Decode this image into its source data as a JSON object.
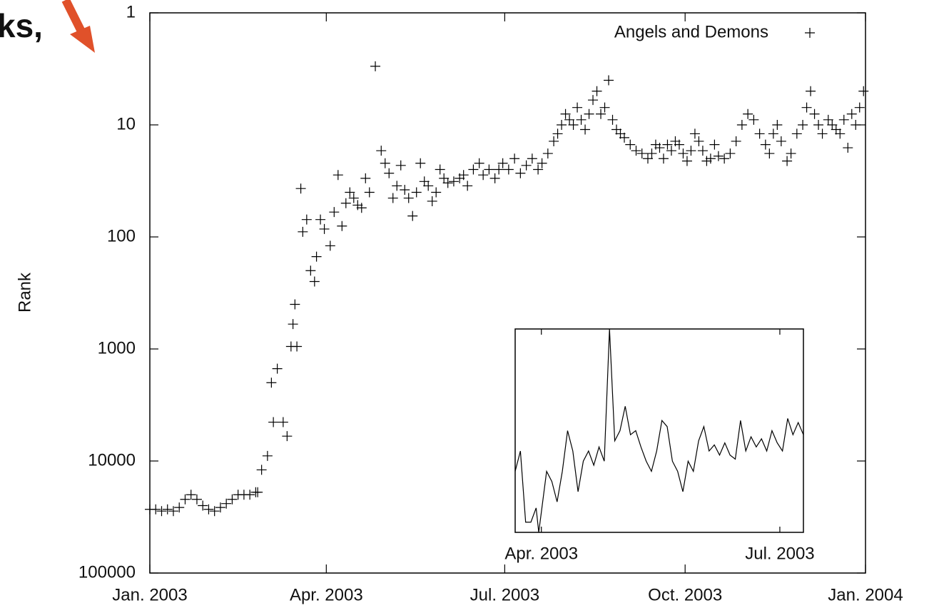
{
  "chart_data": [
    {
      "type": "scatter",
      "annotations": [
        "ks,"
      ],
      "ylabel": "Rank",
      "log_y": true,
      "y_reversed": true,
      "legend": "upper right",
      "xlim": [
        0,
        365
      ],
      "xticks": [
        {
          "value": 0,
          "label": "Jan. 2003"
        },
        {
          "value": 90,
          "label": "Apr. 2003"
        },
        {
          "value": 181,
          "label": "Jul. 2003"
        },
        {
          "value": 273,
          "label": "Oct. 2003"
        },
        {
          "value": 365,
          "label": "Jan. 2004"
        }
      ],
      "ylim": [
        1,
        100000
      ],
      "yticks": [
        1,
        10,
        100,
        1000,
        10000,
        100000
      ],
      "series": [
        {
          "name": "Angels and Demons",
          "color": "#000000",
          "x": [
            0,
            3,
            6,
            9,
            12,
            15,
            18,
            21,
            24,
            27,
            30,
            33,
            36,
            39,
            42,
            45,
            48,
            51,
            54,
            55,
            57,
            60,
            62,
            63,
            65,
            68,
            70,
            72,
            73,
            74,
            75,
            77,
            78,
            80,
            82,
            84,
            85,
            87,
            89,
            92,
            94,
            96,
            98,
            100,
            102,
            104,
            106,
            108,
            110,
            112,
            115,
            118,
            120,
            122,
            124,
            126,
            128,
            130,
            132,
            134,
            136,
            138,
            140,
            142,
            144,
            146,
            148,
            150,
            152,
            155,
            158,
            160,
            162,
            165,
            168,
            170,
            173,
            176,
            178,
            180,
            183,
            186,
            189,
            192,
            195,
            198,
            200,
            203,
            206,
            208,
            210,
            212,
            214,
            216,
            218,
            220,
            222,
            224,
            226,
            228,
            230,
            232,
            234,
            236,
            238,
            240,
            242,
            245,
            248,
            251,
            254,
            256,
            258,
            260,
            262,
            264,
            266,
            268,
            270,
            272,
            274,
            276,
            278,
            280,
            282,
            284,
            286,
            288,
            290,
            293,
            296,
            299,
            302,
            305,
            308,
            311,
            314,
            316,
            318,
            320,
            322,
            325,
            327,
            330,
            333,
            335,
            337,
            339,
            341,
            343,
            346,
            348,
            350,
            352,
            354,
            356,
            358,
            360,
            362,
            364
          ],
          "values": [
            27000,
            27000,
            28000,
            27000,
            28000,
            26000,
            22000,
            20000,
            22000,
            25000,
            27000,
            28000,
            26000,
            24000,
            22000,
            20000,
            20000,
            20000,
            19000,
            19000,
            12000,
            9000,
            2000,
            4500,
            1500,
            4500,
            6000,
            950,
            600,
            400,
            950,
            37,
            90,
            70,
            200,
            250,
            150,
            70,
            85,
            120,
            60,
            28,
            80,
            50,
            40,
            45,
            52,
            55,
            30,
            40,
            3,
            17,
            22,
            27,
            45,
            35,
            23,
            38,
            45,
            65,
            40,
            22,
            32,
            35,
            48,
            40,
            25,
            30,
            33,
            32,
            30,
            28,
            35,
            25,
            22,
            28,
            25,
            30,
            25,
            22,
            25,
            20,
            27,
            23,
            20,
            25,
            22,
            18,
            14,
            12,
            10,
            8,
            9,
            10,
            7,
            9,
            11,
            8,
            6,
            5,
            8,
            7,
            4,
            9,
            11,
            12,
            13,
            15,
            17,
            18,
            20,
            18,
            15,
            16,
            20,
            15,
            17,
            14,
            15,
            18,
            21,
            17,
            12,
            14,
            17,
            21,
            20,
            15,
            19,
            20,
            18,
            14,
            10,
            8,
            9,
            12,
            15,
            18,
            12,
            10,
            14,
            21,
            18,
            12,
            10,
            7,
            5,
            8,
            10,
            12,
            9,
            10,
            11,
            12,
            9,
            16,
            8,
            10,
            7,
            5
          ]
        }
      ]
    },
    {
      "type": "line",
      "xlim": [
        80,
        190
      ],
      "xticks": [
        {
          "value": 90,
          "label": "Apr. 2003"
        },
        {
          "value": 181,
          "label": "Jul. 2003"
        }
      ],
      "ylim": [
        0,
        100
      ],
      "series": [
        {
          "color": "#000000",
          "x": [
            80,
            82,
            84,
            86,
            88,
            89,
            90,
            92,
            94,
            96,
            98,
            100,
            102,
            104,
            106,
            108,
            110,
            112,
            114,
            116,
            118,
            120,
            122,
            124,
            126,
            128,
            130,
            132,
            134,
            136,
            138,
            140,
            142,
            144,
            146,
            148,
            150,
            152,
            154,
            156,
            158,
            160,
            162,
            164,
            166,
            168,
            170,
            172,
            174,
            176,
            178,
            180,
            182,
            184,
            186,
            188,
            190
          ],
          "values": [
            30,
            40,
            5,
            5,
            12,
            0,
            10,
            30,
            25,
            15,
            30,
            50,
            40,
            20,
            35,
            40,
            33,
            42,
            35,
            100,
            45,
            50,
            62,
            48,
            50,
            42,
            35,
            30,
            40,
            55,
            52,
            35,
            30,
            20,
            35,
            30,
            45,
            52,
            40,
            43,
            38,
            44,
            38,
            36,
            55,
            40,
            47,
            42,
            46,
            40,
            50,
            44,
            40,
            56,
            48,
            54,
            48
          ]
        }
      ]
    }
  ]
}
